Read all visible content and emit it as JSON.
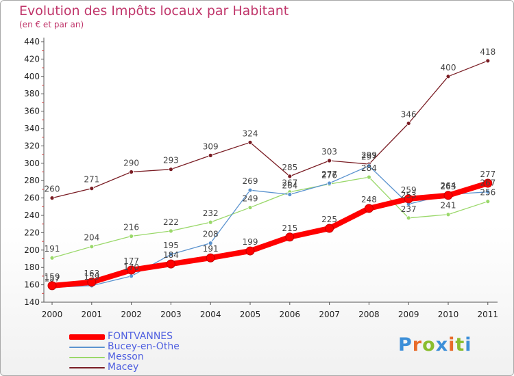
{
  "header": {
    "title": "Evolution des Impôts locaux par Habitant",
    "subtitle": "(en € et par an)"
  },
  "brand": {
    "letters": [
      "P",
      "r",
      "o",
      "x",
      "i",
      "t",
      "i"
    ],
    "colors": [
      "#3d8fd8",
      "#e86b2a",
      "#8abd2e",
      "#3d8fd8",
      "#e86b2a",
      "#8abd2e",
      "#3d8fd8"
    ]
  },
  "chart_data": {
    "type": "line",
    "title": "Evolution des Impôts locaux par Habitant",
    "subtitle": "(en € et par an)",
    "xlabel": "",
    "ylabel": "",
    "categories": [
      "2000",
      "2001",
      "2002",
      "2003",
      "2004",
      "2005",
      "2006",
      "2007",
      "2008",
      "2009",
      "2010",
      "2011"
    ],
    "y_ticks": [
      140,
      160,
      180,
      200,
      220,
      240,
      260,
      280,
      300,
      320,
      340,
      360,
      380,
      400,
      420,
      440
    ],
    "ylim": [
      140,
      440
    ],
    "grid": false,
    "legend_position": "bottom-left",
    "series": [
      {
        "name": "Macey",
        "color": "#7a1d24",
        "values": [
          260,
          271,
          290,
          293,
          309,
          324,
          285,
          303,
          299,
          346,
          400,
          418
        ]
      },
      {
        "name": "Messon",
        "color": "#9ad86a",
        "values": [
          191,
          204,
          216,
          222,
          232,
          249,
          267,
          276,
          284,
          237,
          241,
          256
        ]
      },
      {
        "name": "Bucey-en-Othe",
        "color": "#5b93cf",
        "values": [
          157,
          159,
          170,
          195,
          208,
          269,
          264,
          277,
          297,
          253,
          264,
          267
        ]
      },
      {
        "name": "FONTVANNES",
        "color": "#ff0000",
        "values": [
          159,
          163,
          177,
          184,
          191,
          199,
          215,
          225,
          248,
          259,
          263,
          277
        ]
      }
    ]
  }
}
